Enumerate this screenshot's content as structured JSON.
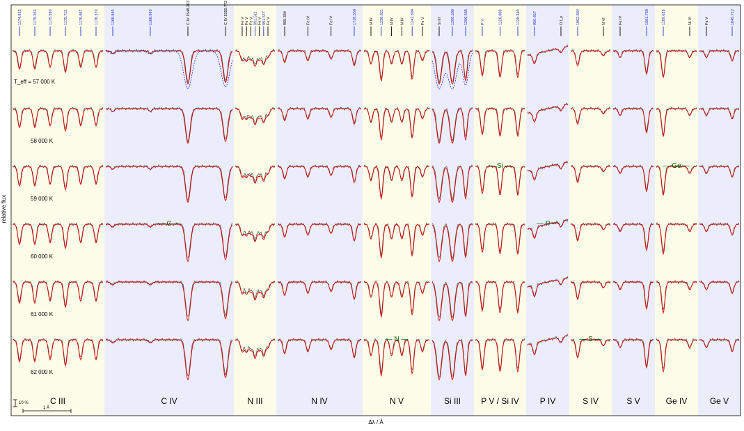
{
  "chart_data": {
    "type": "line",
    "xlabel": "Δλ / Å",
    "ylabel": "relative flux",
    "scale_bars": {
      "flux": "10 %",
      "wavelength": "1 Å"
    },
    "colors": {
      "observed": "#555555",
      "model": "#e00000",
      "model_alt": "#1f2fd0",
      "line_id_blue": "#1f2fd0",
      "line_id_black": "#000000",
      "element_marker": "#006400",
      "band_yellow": "#fdfce8",
      "band_blue": "#ecedfb",
      "frame": "#000000"
    },
    "temperatures": [
      {
        "label": "T_eff = 57 000 K",
        "value_K": 57000
      },
      {
        "label": "58 000 K",
        "value_K": 58000
      },
      {
        "label": "59 000 K",
        "value_K": 59000
      },
      {
        "label": "60 000 K",
        "value_K": 60000
      },
      {
        "label": "61 000 K",
        "value_K": 61000
      },
      {
        "label": "62 000 K",
        "value_K": 62000
      }
    ],
    "panels": [
      {
        "label": "C III",
        "band": "yellow",
        "lines": [
          {
            "id": "1174.933",
            "strength": 0.55,
            "color": "blue"
          },
          {
            "id": "1175.263",
            "strength": 0.55,
            "color": "blue"
          },
          {
            "id": "1175.590",
            "strength": 0.5,
            "color": "blue"
          },
          {
            "id": "1175.711",
            "strength": 0.65,
            "color": "blue"
          },
          {
            "id": "1175.987",
            "strength": 0.5,
            "color": "blue"
          },
          {
            "id": "1176.370",
            "strength": 0.5,
            "color": "blue"
          }
        ]
      },
      {
        "label": "C IV",
        "band": "blue",
        "lines": [
          {
            "id": "1168.849",
            "strength": 0.08,
            "color": "blue"
          },
          {
            "id": "1168.993",
            "strength": 0.08,
            "color": "blue"
          },
          {
            "id": "C IV 1548.203",
            "strength": 1.0,
            "color": "black"
          },
          {
            "id": "C IV 1550.772",
            "strength": 0.95,
            "color": "black"
          }
        ]
      },
      {
        "label": "N III",
        "band": "yellow",
        "lines": [
          {
            "id": "Fe V",
            "strength": 0.3,
            "color": "black"
          },
          {
            "id": "Fe V",
            "strength": 0.3,
            "color": "black"
          },
          {
            "id": "Fe V",
            "strength": 0.25,
            "color": "black"
          },
          {
            "id": "991.511",
            "strength": 0.45,
            "color": "blue"
          },
          {
            "id": "Fe V",
            "strength": 0.25,
            "color": "black"
          },
          {
            "id": "991.577",
            "strength": 0.4,
            "color": "blue"
          },
          {
            "id": "Fe V",
            "strength": 0.2,
            "color": "black"
          }
        ]
      },
      {
        "label": "N IV",
        "band": "blue",
        "lines": [
          {
            "id": "955.334",
            "strength": 0.35,
            "color": "black"
          },
          {
            "id": "Fe IV",
            "strength": 0.3,
            "color": "black"
          },
          {
            "id": "Fe IV",
            "strength": 0.25,
            "color": "black"
          },
          {
            "id": "1718.550",
            "strength": 0.45,
            "color": "blue"
          }
        ]
      },
      {
        "label": "N V",
        "band": "yellow",
        "lines": [
          {
            "id": "N IV",
            "strength": 0.4,
            "color": "black"
          },
          {
            "id": "1238.821",
            "strength": 0.9,
            "color": "blue"
          },
          {
            "id": "N IV",
            "strength": 0.4,
            "color": "black"
          },
          {
            "id": "N IV",
            "strength": 0.4,
            "color": "black"
          },
          {
            "id": "1242.804",
            "strength": 0.85,
            "color": "blue"
          },
          {
            "id": "Fe V",
            "strength": 0.3,
            "color": "black"
          }
        ]
      },
      {
        "label": "Si III",
        "band": "blue",
        "lines": [
          {
            "id": "Si III",
            "strength": 1.0,
            "color": "black"
          },
          {
            "id": "1206.500",
            "strength": 1.0,
            "color": "blue"
          },
          {
            "id": "1206.555",
            "strength": 0.9,
            "color": "blue"
          }
        ]
      },
      {
        "label": "P V / Si IV",
        "band": "yellow",
        "lines": [
          {
            "id": "P V",
            "strength": 0.75,
            "color": "blue"
          },
          {
            "id": "1128.008",
            "strength": 0.8,
            "color": "blue"
          },
          {
            "id": "1128.340",
            "strength": 0.8,
            "color": "blue"
          }
        ]
      },
      {
        "label": "P IV",
        "band": "blue",
        "lines": [
          {
            "id": "950.657",
            "strength": 0.3,
            "color": "blue"
          },
          {
            "id": "O I_s",
            "strength": 0.15,
            "color": "black"
          }
        ]
      },
      {
        "label": "S IV",
        "band": "yellow",
        "lines": [
          {
            "id": "1062.664",
            "strength": 0.45,
            "color": "blue"
          },
          {
            "id": "N VI",
            "strength": 0.15,
            "color": "black"
          }
        ]
      },
      {
        "label": "S V",
        "band": "blue",
        "lines": [
          {
            "id": "Fe IV",
            "strength": 0.2,
            "color": "black"
          },
          {
            "id": "1501.760",
            "strength": 0.7,
            "color": "blue"
          }
        ]
      },
      {
        "label": "Ge IV",
        "band": "yellow",
        "lines": [
          {
            "id": "1189.028",
            "strength": 0.8,
            "color": "blue"
          },
          {
            "id": "Ni VI",
            "strength": 0.2,
            "color": "black"
          }
        ]
      },
      {
        "label": "Ge V",
        "band": "blue",
        "lines": [
          {
            "id": "Fe V",
            "strength": 0.2,
            "color": "black"
          },
          {
            "id": "1045.712",
            "strength": 0.3,
            "color": "blue"
          }
        ]
      }
    ],
    "element_markers": [
      {
        "label": "— C —",
        "panel": 1,
        "row": 3
      },
      {
        "label": "— Si —",
        "panel": 6,
        "row": 2
      },
      {
        "label": "— P —",
        "panel": 7,
        "row": 3
      },
      {
        "label": "— N —",
        "panel": 4,
        "row": 5
      },
      {
        "label": "— S —",
        "panel": 8,
        "row": 5
      },
      {
        "label": "— Ge —",
        "panel": 10,
        "row": 2
      }
    ]
  }
}
